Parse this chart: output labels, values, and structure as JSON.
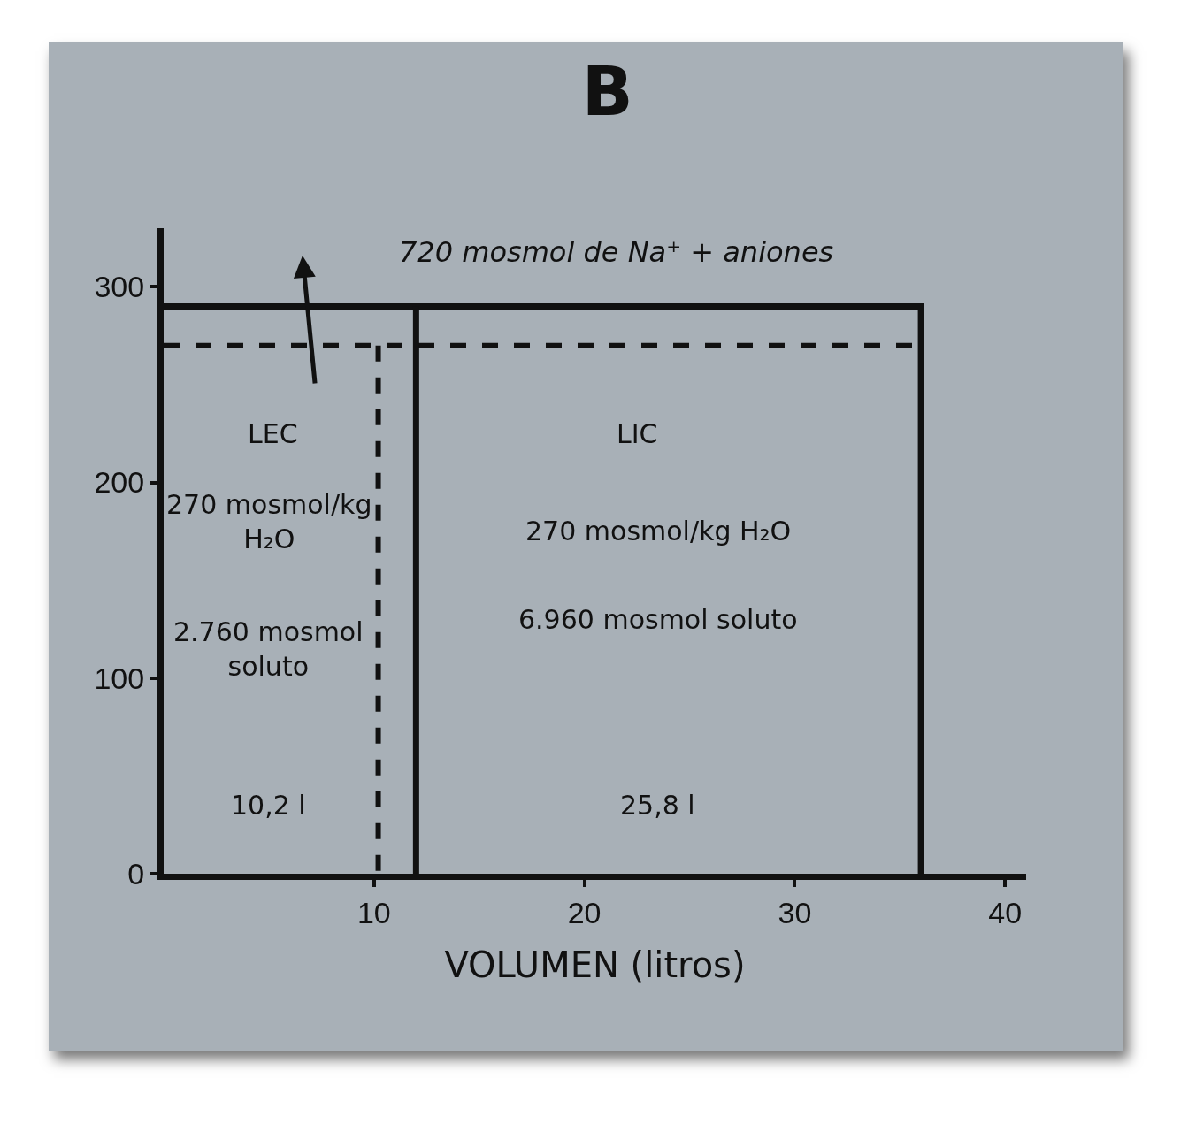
{
  "chart_data": {
    "type": "line",
    "title": "B",
    "xlabel": "VOLUMEN (litros)",
    "xlim": [
      0,
      41
    ],
    "xticks": [
      10,
      20,
      30,
      40
    ],
    "ylim": [
      0,
      330
    ],
    "yticks": [
      0,
      100,
      200,
      300
    ],
    "grid": false,
    "marker": "none",
    "series": [
      {
        "x": [
          0,
          36,
          36
        ],
        "values": [
          270,
          270,
          0
        ],
        "color": "#111111",
        "line_style": "dashed"
      },
      {
        "x": [
          10.2,
          10.2
        ],
        "values": [
          270,
          0
        ],
        "color": "#111111",
        "line_style": "dashed"
      },
      {
        "x": [
          0,
          36,
          36
        ],
        "values": [
          290,
          290,
          0
        ],
        "color": "#111111",
        "line_style": "solid"
      },
      {
        "x": [
          12,
          12
        ],
        "values": [
          290,
          0
        ],
        "color": "#111111",
        "line_style": "solid"
      }
    ],
    "annotations": [
      "720 mosmol de Na⁺ + aniones",
      "LEC",
      "LIC",
      "270 mosmol/kg\nH₂O",
      "2.760 mosmol\nsoluto",
      "270 mosmol/kg H₂O",
      "6.960 mosmol soluto",
      "10,2 l",
      "25,8 l"
    ]
  }
}
